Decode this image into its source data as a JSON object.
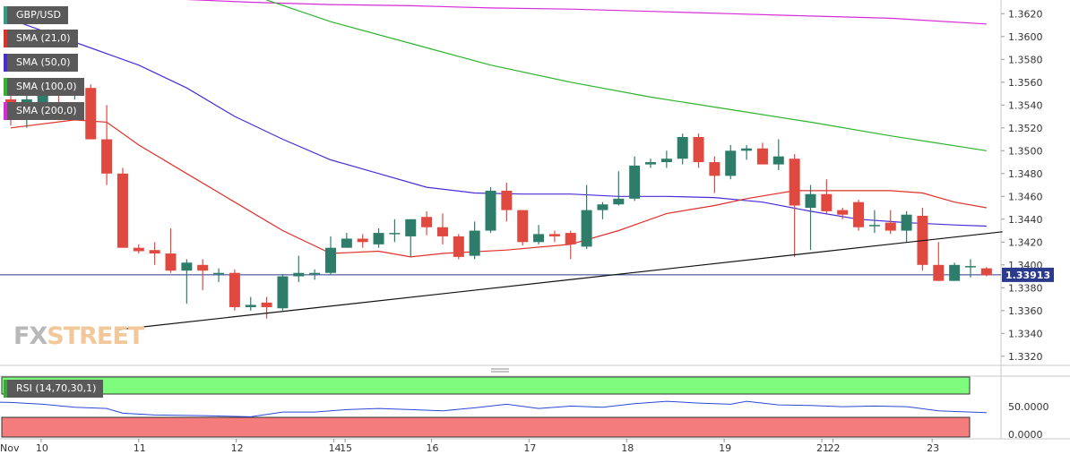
{
  "symbol": "GBP/USD",
  "legend": [
    {
      "label": "SMA (21,0)",
      "color": "#e0302a"
    },
    {
      "label": "SMA (50,0)",
      "color": "#4b2bd6"
    },
    {
      "label": "SMA (100,0)",
      "color": "#2db32d"
    },
    {
      "label": "SMA (200,0)",
      "color": "#d62bd6"
    }
  ],
  "watermark": "FXSTREET",
  "rsi_label": "RSI (14,70,30,1)",
  "chart_data": {
    "type": "candlestick",
    "price_axis": {
      "min": 1.3312,
      "max": 1.3632,
      "ticks": [
        "1.3320",
        "1.3340",
        "1.3360",
        "1.3380",
        "1.3400",
        "1.3420",
        "1.3440",
        "1.3460",
        "1.3480",
        "1.3500",
        "1.3520",
        "1.3540",
        "1.3560",
        "1.3580",
        "1.3600",
        "1.3620"
      ]
    },
    "x_ticks": [
      {
        "label": "Nov",
        "i": -1.7
      },
      {
        "label": "10",
        "i": 1.9
      },
      {
        "label": "11",
        "i": 8.0
      },
      {
        "label": "12",
        "i": 14.1
      },
      {
        "label": "14",
        "i": 20.2
      },
      {
        "label": "15",
        "i": 20.9
      },
      {
        "label": "16",
        "i": 26.3
      },
      {
        "label": "17",
        "i": 32.4
      },
      {
        "label": "18",
        "i": 38.5
      },
      {
        "label": "19",
        "i": 44.6
      },
      {
        "label": "21",
        "i": 50.7
      },
      {
        "label": "22",
        "i": 51.4
      },
      {
        "label": "23",
        "i": 57.6
      }
    ],
    "current_price": "1.33913",
    "current_value": 1.33913,
    "candles": [
      [
        1.3545,
        1.3548,
        1.3522,
        1.3528
      ],
      [
        1.3528,
        1.3553,
        1.352,
        1.3545
      ],
      [
        1.3542,
        1.356,
        1.3538,
        1.3556
      ],
      [
        1.3553,
        1.356,
        1.3535,
        1.355
      ],
      [
        1.3552,
        1.356,
        1.3545,
        1.3555
      ],
      [
        1.3555,
        1.3558,
        1.351,
        1.351
      ],
      [
        1.351,
        1.354,
        1.347,
        1.348
      ],
      [
        1.348,
        1.3485,
        1.3415,
        1.3415
      ],
      [
        1.3415,
        1.3418,
        1.341,
        1.3412
      ],
      [
        1.3413,
        1.342,
        1.34,
        1.341
      ],
      [
        1.341,
        1.3432,
        1.3393,
        1.3395
      ],
      [
        1.3395,
        1.3405,
        1.3366,
        1.3402
      ],
      [
        1.34,
        1.3405,
        1.3378,
        1.3395
      ],
      [
        1.3393,
        1.3397,
        1.3385,
        1.3393
      ],
      [
        1.3393,
        1.3396,
        1.336,
        1.3363
      ],
      [
        1.3363,
        1.3372,
        1.336,
        1.3365
      ],
      [
        1.3367,
        1.3372,
        1.3353,
        1.3363
      ],
      [
        1.3362,
        1.3392,
        1.336,
        1.339
      ],
      [
        1.339,
        1.3408,
        1.3385,
        1.3393
      ],
      [
        1.3392,
        1.3396,
        1.3387,
        1.3393
      ],
      [
        1.3393,
        1.3425,
        1.3391,
        1.3415
      ],
      [
        1.3415,
        1.3428,
        1.3415,
        1.3423
      ],
      [
        1.3423,
        1.3427,
        1.3415,
        1.342
      ],
      [
        1.3418,
        1.3432,
        1.3415,
        1.3428
      ],
      [
        1.3428,
        1.344,
        1.342,
        1.3428
      ],
      [
        1.3425,
        1.344,
        1.3407,
        1.344
      ],
      [
        1.3442,
        1.3447,
        1.3426,
        1.3433
      ],
      [
        1.3433,
        1.3445,
        1.3418,
        1.3425
      ],
      [
        1.3425,
        1.3427,
        1.3405,
        1.3407
      ],
      [
        1.3408,
        1.3438,
        1.3405,
        1.343
      ],
      [
        1.343,
        1.3468,
        1.3428,
        1.3465
      ],
      [
        1.3465,
        1.3472,
        1.3438,
        1.3448
      ],
      [
        1.3448,
        1.3448,
        1.3417,
        1.342
      ],
      [
        1.342,
        1.3435,
        1.3418,
        1.3427
      ],
      [
        1.3427,
        1.343,
        1.342,
        1.3425
      ],
      [
        1.3428,
        1.343,
        1.3405,
        1.3418
      ],
      [
        1.3416,
        1.347,
        1.3414,
        1.3448
      ],
      [
        1.3448,
        1.3455,
        1.344,
        1.3453
      ],
      [
        1.3453,
        1.3482,
        1.3452,
        1.3458
      ],
      [
        1.3458,
        1.3495,
        1.3456,
        1.3487
      ],
      [
        1.3488,
        1.3493,
        1.3485,
        1.349
      ],
      [
        1.349,
        1.35,
        1.3485,
        1.3493
      ],
      [
        1.3493,
        1.3515,
        1.3488,
        1.3512
      ],
      [
        1.3512,
        1.3515,
        1.3485,
        1.349
      ],
      [
        1.349,
        1.3495,
        1.3463,
        1.3478
      ],
      [
        1.3478,
        1.3505,
        1.3475,
        1.35
      ],
      [
        1.35,
        1.3505,
        1.3492,
        1.3502
      ],
      [
        1.3502,
        1.3507,
        1.3488,
        1.3488
      ],
      [
        1.3488,
        1.351,
        1.3483,
        1.3495
      ],
      [
        1.3493,
        1.3497,
        1.3407,
        1.3452
      ],
      [
        1.345,
        1.347,
        1.3413,
        1.3462
      ],
      [
        1.3462,
        1.3475,
        1.3445,
        1.3447
      ],
      [
        1.3448,
        1.345,
        1.344,
        1.3444
      ],
      [
        1.3455,
        1.3457,
        1.343,
        1.3433
      ],
      [
        1.3435,
        1.3448,
        1.3428,
        1.3435
      ],
      [
        1.3437,
        1.3448,
        1.3427,
        1.343
      ],
      [
        1.343,
        1.3447,
        1.342,
        1.3444
      ],
      [
        1.3443,
        1.345,
        1.3395,
        1.34
      ],
      [
        1.34,
        1.342,
        1.3386,
        1.3386
      ],
      [
        1.3386,
        1.3402,
        1.3386,
        1.34
      ],
      [
        1.3399,
        1.3405,
        1.3389,
        1.3399
      ],
      [
        1.3397,
        1.3398,
        1.339,
        1.3391
      ]
    ],
    "sma21": [
      [
        0,
        1.352
      ],
      [
        4,
        1.3527
      ],
      [
        6,
        1.3525
      ],
      [
        8,
        1.3505
      ],
      [
        11,
        1.348
      ],
      [
        14,
        1.3455
      ],
      [
        17,
        1.343
      ],
      [
        20,
        1.341
      ],
      [
        23,
        1.3412
      ],
      [
        25,
        1.3407
      ],
      [
        27,
        1.341
      ],
      [
        31,
        1.3413
      ],
      [
        35,
        1.3418
      ],
      [
        38,
        1.343
      ],
      [
        41,
        1.3445
      ],
      [
        44,
        1.3452
      ],
      [
        46,
        1.3458
      ],
      [
        49,
        1.3465
      ],
      [
        53,
        1.3465
      ],
      [
        55,
        1.3465
      ],
      [
        57,
        1.3463
      ],
      [
        59,
        1.3455
      ],
      [
        61,
        1.345
      ]
    ],
    "sma50": [
      [
        0,
        1.3615
      ],
      [
        2,
        1.3605
      ],
      [
        5,
        1.359
      ],
      [
        8,
        1.3575
      ],
      [
        11,
        1.3555
      ],
      [
        14,
        1.353
      ],
      [
        17,
        1.351
      ],
      [
        20,
        1.3492
      ],
      [
        23,
        1.348
      ],
      [
        26,
        1.3468
      ],
      [
        29,
        1.3463
      ],
      [
        32,
        1.3462
      ],
      [
        35,
        1.3462
      ],
      [
        38,
        1.346
      ],
      [
        41,
        1.346
      ],
      [
        44,
        1.3459
      ],
      [
        47,
        1.3455
      ],
      [
        50,
        1.3447
      ],
      [
        53,
        1.344
      ],
      [
        56,
        1.3437
      ],
      [
        59,
        1.3435
      ],
      [
        61,
        1.3434
      ]
    ],
    "sma100": [
      [
        13,
        1.3655
      ],
      [
        16,
        1.3632
      ],
      [
        20,
        1.3613
      ],
      [
        25,
        1.3594
      ],
      [
        30,
        1.3575
      ],
      [
        35,
        1.356
      ],
      [
        40,
        1.3547
      ],
      [
        45,
        1.3536
      ],
      [
        50,
        1.3525
      ],
      [
        55,
        1.3513
      ],
      [
        61,
        1.35
      ]
    ],
    "sma200": [
      [
        10,
        1.3633
      ],
      [
        15,
        1.363
      ],
      [
        20,
        1.3628
      ],
      [
        25,
        1.3627
      ],
      [
        30,
        1.3625
      ],
      [
        35,
        1.3624
      ],
      [
        40,
        1.3622
      ],
      [
        45,
        1.362
      ],
      [
        50,
        1.3618
      ],
      [
        55,
        1.3616
      ],
      [
        61,
        1.3611
      ]
    ],
    "trendline": [
      [
        6.5,
        1.3343
      ],
      [
        62,
        1.3429
      ]
    ],
    "rsi": {
      "ticks": [
        "50.0000",
        "0.0000"
      ],
      "overbought": 70,
      "oversold": 30,
      "values": [
        [
          -3,
          60
        ],
        [
          0,
          58
        ],
        [
          2,
          55
        ],
        [
          4,
          50
        ],
        [
          6,
          48
        ],
        [
          7,
          40
        ],
        [
          9,
          37
        ],
        [
          12,
          36
        ],
        [
          15,
          34
        ],
        [
          17,
          42
        ],
        [
          19,
          42
        ],
        [
          21,
          46
        ],
        [
          23,
          48
        ],
        [
          25,
          46
        ],
        [
          27,
          44
        ],
        [
          29,
          49
        ],
        [
          31,
          55
        ],
        [
          33,
          48
        ],
        [
          35,
          52
        ],
        [
          37,
          50
        ],
        [
          39,
          56
        ],
        [
          41,
          60
        ],
        [
          43,
          57
        ],
        [
          45,
          55
        ],
        [
          46,
          60
        ],
        [
          48,
          54
        ],
        [
          50,
          53
        ],
        [
          52,
          51
        ],
        [
          54,
          52
        ],
        [
          56,
          51
        ],
        [
          58,
          44
        ],
        [
          60,
          42
        ],
        [
          61,
          41
        ]
      ]
    }
  }
}
